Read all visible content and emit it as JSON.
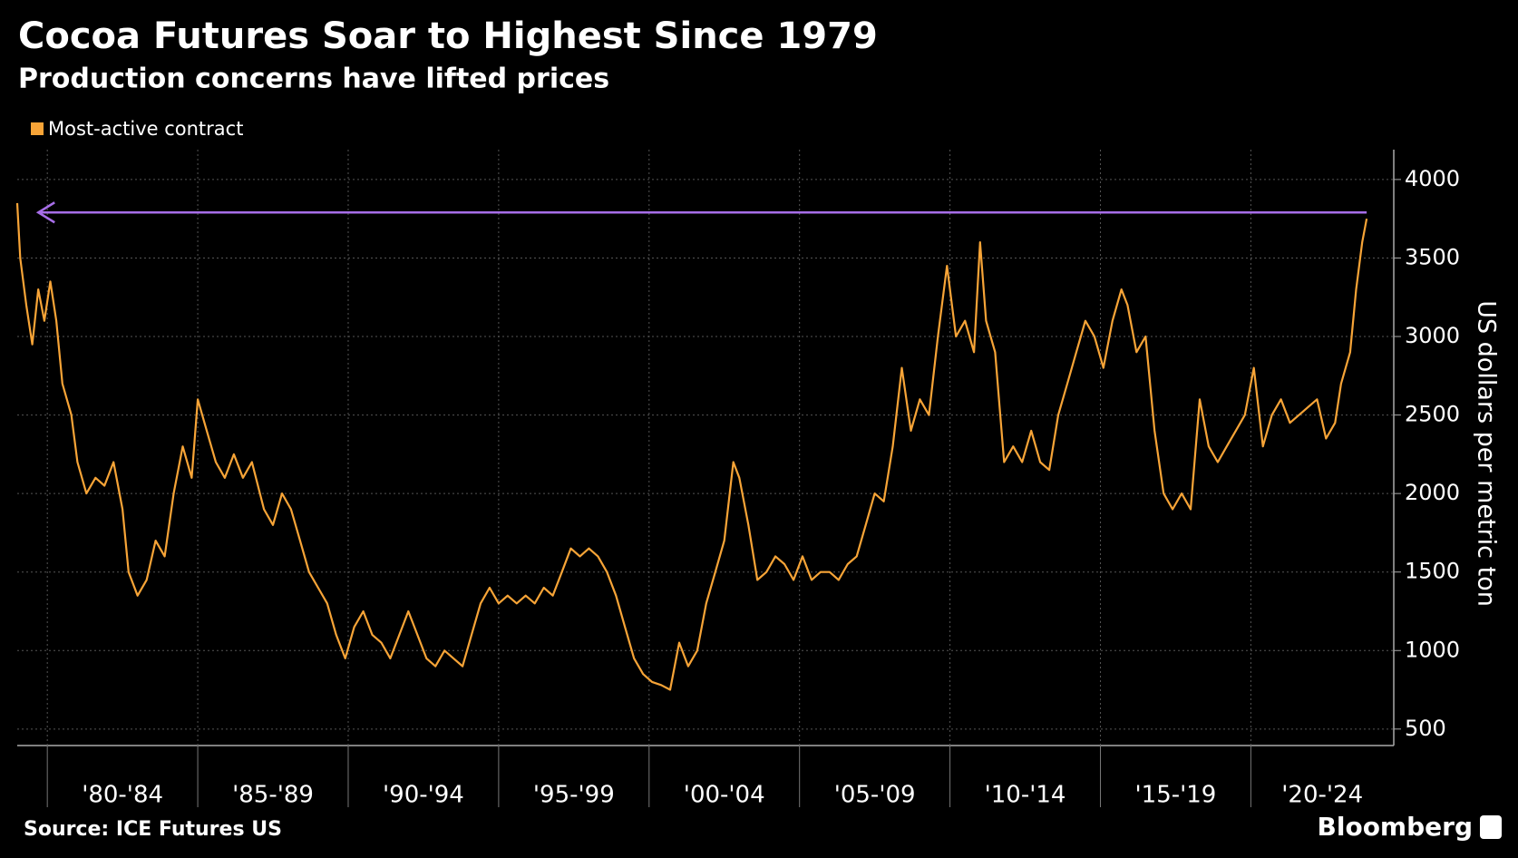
{
  "chart_data": {
    "type": "line",
    "title": "Cocoa Futures Soar to Highest Since 1979",
    "subtitle": "Production concerns have lifted prices",
    "y_label": "US dollars per metric ton",
    "source": "Source: ICE Futures US",
    "brand": "Bloomberg",
    "xlim": [
      1979.0,
      2024.75
    ],
    "ylim": [
      395,
      4190
    ],
    "yticks": [
      500,
      1000,
      1500,
      2000,
      2500,
      3000,
      3500,
      4000
    ],
    "grid": true,
    "legend": "top-left",
    "periods": [
      {
        "label": "'80-'84",
        "start": 1980,
        "end": 1985
      },
      {
        "label": "'85-'89",
        "start": 1985,
        "end": 1990
      },
      {
        "label": "'90-'94",
        "start": 1990,
        "end": 1995
      },
      {
        "label": "'95-'99",
        "start": 1995,
        "end": 2000
      },
      {
        "label": "'00-'04",
        "start": 2000,
        "end": 2005
      },
      {
        "label": "'05-'09",
        "start": 2005,
        "end": 2010
      },
      {
        "label": "'10-'14",
        "start": 2010,
        "end": 2015
      },
      {
        "label": "'15-'19",
        "start": 2015,
        "end": 2020
      },
      {
        "label": "'20-'24",
        "start": 2020,
        "end": 2025
      }
    ],
    "reference_line": {
      "value": 3790,
      "x": [
        1979.7,
        2023.85
      ],
      "color": "#a76ee8"
    },
    "series": [
      {
        "name": "Most-active contract",
        "color": "#f7a437",
        "x": [
          1979.0,
          1979.1,
          1979.3,
          1979.5,
          1979.7,
          1979.9,
          1980.1,
          1980.3,
          1980.5,
          1980.8,
          1981.0,
          1981.3,
          1981.6,
          1981.9,
          1982.2,
          1982.5,
          1982.7,
          1983.0,
          1983.3,
          1983.6,
          1983.9,
          1984.2,
          1984.5,
          1984.8,
          1985.0,
          1985.3,
          1985.6,
          1985.9,
          1986.2,
          1986.5,
          1986.8,
          1987.2,
          1987.5,
          1987.8,
          1988.1,
          1988.4,
          1988.7,
          1989.0,
          1989.3,
          1989.6,
          1989.9,
          1990.2,
          1990.5,
          1990.8,
          1991.1,
          1991.4,
          1991.7,
          1992.0,
          1992.3,
          1992.6,
          1992.9,
          1993.2,
          1993.5,
          1993.8,
          1994.1,
          1994.4,
          1994.7,
          1995.0,
          1995.3,
          1995.6,
          1995.9,
          1996.2,
          1996.5,
          1996.8,
          1997.1,
          1997.4,
          1997.7,
          1998.0,
          1998.3,
          1998.6,
          1998.9,
          1999.2,
          1999.5,
          1999.8,
          2000.1,
          2000.4,
          2000.7,
          2001.0,
          2001.3,
          2001.6,
          2001.9,
          2002.2,
          2002.5,
          2002.8,
          2003.0,
          2003.3,
          2003.6,
          2003.9,
          2004.2,
          2004.5,
          2004.8,
          2005.1,
          2005.4,
          2005.7,
          2006.0,
          2006.3,
          2006.6,
          2006.9,
          2007.2,
          2007.5,
          2007.8,
          2008.1,
          2008.4,
          2008.7,
          2009.0,
          2009.3,
          2009.6,
          2009.9,
          2010.2,
          2010.5,
          2010.8,
          2011.0,
          2011.2,
          2011.5,
          2011.8,
          2012.1,
          2012.4,
          2012.7,
          2013.0,
          2013.3,
          2013.6,
          2013.9,
          2014.2,
          2014.5,
          2014.8,
          2015.1,
          2015.4,
          2015.7,
          2015.9,
          2016.2,
          2016.5,
          2016.8,
          2017.1,
          2017.4,
          2017.7,
          2018.0,
          2018.3,
          2018.6,
          2018.9,
          2019.2,
          2019.5,
          2019.8,
          2020.1,
          2020.4,
          2020.7,
          2021.0,
          2021.3,
          2021.6,
          2021.9,
          2022.2,
          2022.5,
          2022.8,
          2023.0,
          2023.3,
          2023.5,
          2023.7,
          2023.85
        ],
        "values": [
          3850,
          3500,
          3200,
          2950,
          3300,
          3100,
          3350,
          3100,
          2700,
          2500,
          2200,
          2000,
          2100,
          2050,
          2200,
          1900,
          1500,
          1350,
          1450,
          1700,
          1600,
          2000,
          2300,
          2100,
          2600,
          2400,
          2200,
          2100,
          2250,
          2100,
          2200,
          1900,
          1800,
          2000,
          1900,
          1700,
          1500,
          1400,
          1300,
          1100,
          950,
          1150,
          1250,
          1100,
          1050,
          950,
          1100,
          1250,
          1100,
          950,
          900,
          1000,
          950,
          900,
          1100,
          1300,
          1400,
          1300,
          1350,
          1300,
          1350,
          1300,
          1400,
          1350,
          1500,
          1650,
          1600,
          1650,
          1600,
          1500,
          1350,
          1150,
          950,
          850,
          800,
          780,
          750,
          1050,
          900,
          1000,
          1300,
          1500,
          1700,
          2200,
          2100,
          1800,
          1450,
          1500,
          1600,
          1550,
          1450,
          1600,
          1450,
          1500,
          1500,
          1450,
          1550,
          1600,
          1800,
          2000,
          1950,
          2300,
          2800,
          2400,
          2600,
          2500,
          3000,
          3450,
          3000,
          3100,
          2900,
          3600,
          3100,
          2900,
          2200,
          2300,
          2200,
          2400,
          2200,
          2150,
          2500,
          2700,
          2900,
          3100,
          3000,
          2800,
          3100,
          3300,
          3200,
          2900,
          3000,
          2400,
          2000,
          1900,
          2000,
          1900,
          2600,
          2300,
          2200,
          2300,
          2400,
          2500,
          2800,
          2300,
          2500,
          2600,
          2450,
          2500,
          2550,
          2600,
          2350,
          2450,
          2700,
          2900,
          3300,
          3600,
          3750
        ]
      }
    ]
  }
}
